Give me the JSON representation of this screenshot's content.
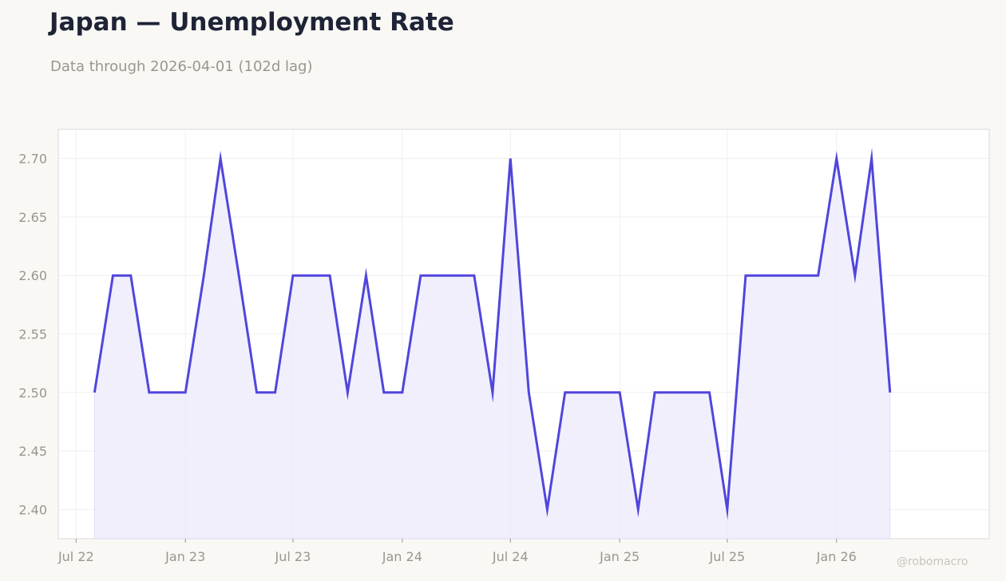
{
  "header": {
    "title": "Japan — Unemployment Rate",
    "subtitle": "Data through 2026-04-01 (102d lag)"
  },
  "watermark": "@robomacro",
  "colors": {
    "background": "#f9f8f5",
    "plot_background": "#ffffff",
    "line": "#5046dc",
    "fill": "#ece9fb",
    "grid": "#ececec",
    "text_muted": "#9a9690"
  },
  "chart_data": {
    "type": "area",
    "title": "Japan — Unemployment Rate",
    "subtitle": "Data through 2026-04-01 (102d lag)",
    "xlabel": "",
    "ylabel": "",
    "ylim": [
      2.375,
      2.725
    ],
    "xlim": [
      "2022-06-01",
      "2026-09-15"
    ],
    "grid": true,
    "legend": "none",
    "x_ticks": [
      {
        "date": "2022-07-01",
        "label": "Jul 22"
      },
      {
        "date": "2023-01-01",
        "label": "Jan 23"
      },
      {
        "date": "2023-07-01",
        "label": "Jul 23"
      },
      {
        "date": "2024-01-01",
        "label": "Jan 24"
      },
      {
        "date": "2024-07-01",
        "label": "Jul 24"
      },
      {
        "date": "2025-01-01",
        "label": "Jan 25"
      },
      {
        "date": "2025-07-01",
        "label": "Jul 25"
      },
      {
        "date": "2026-01-01",
        "label": "Jan 26"
      }
    ],
    "y_ticks": [
      2.4,
      2.45,
      2.5,
      2.55,
      2.6,
      2.65,
      2.7
    ],
    "series": [
      {
        "dates": [
          "2022-08-01",
          "2022-09-01",
          "2022-10-01",
          "2022-11-01",
          "2022-12-01",
          "2023-01-01",
          "2023-02-01",
          "2023-03-01",
          "2023-04-01",
          "2023-05-01",
          "2023-06-01",
          "2023-07-01",
          "2023-08-01",
          "2023-09-01",
          "2023-10-01",
          "2023-11-01",
          "2023-12-01",
          "2024-01-01",
          "2024-02-01",
          "2024-03-01",
          "2024-04-01",
          "2024-05-01",
          "2024-06-01",
          "2024-07-01",
          "2024-08-01",
          "2024-09-01",
          "2024-10-01",
          "2024-11-01",
          "2024-12-01",
          "2025-01-01",
          "2025-02-01",
          "2025-03-01",
          "2025-04-01",
          "2025-05-01",
          "2025-06-01",
          "2025-07-01",
          "2025-08-01",
          "2025-09-01",
          "2025-10-01",
          "2025-11-01",
          "2025-12-01",
          "2026-01-01",
          "2026-02-01",
          "2026-03-01",
          "2026-04-01"
        ],
        "values": [
          2.5,
          2.6,
          2.6,
          2.5,
          2.5,
          2.5,
          2.6,
          2.7,
          2.6,
          2.5,
          2.5,
          2.6,
          2.6,
          2.6,
          2.5,
          2.6,
          2.5,
          2.5,
          2.6,
          2.6,
          2.6,
          2.6,
          2.5,
          2.7,
          2.5,
          2.4,
          2.5,
          2.5,
          2.5,
          2.5,
          2.4,
          2.5,
          2.5,
          2.5,
          2.5,
          2.4,
          2.6,
          2.6,
          2.6,
          2.6,
          2.6,
          2.7,
          2.6,
          2.7,
          2.5
        ]
      }
    ]
  }
}
